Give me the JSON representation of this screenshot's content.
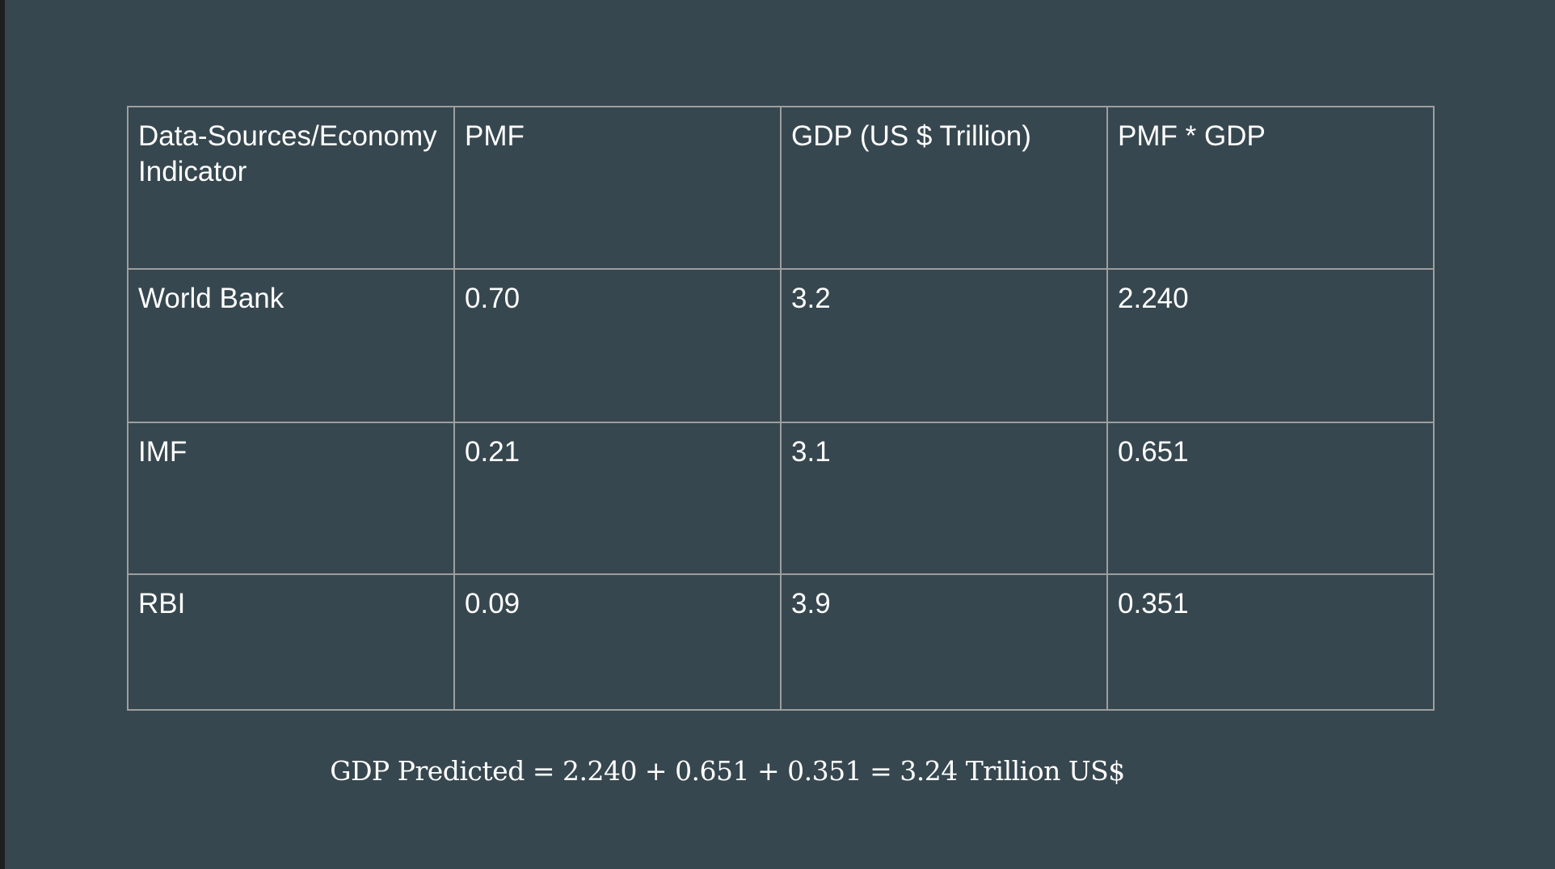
{
  "table": {
    "headers": [
      "Data-Sources/Economy Indicator",
      "PMF",
      "GDP (US $ Trillion)",
      "PMF * GDP"
    ],
    "rows": [
      [
        "World Bank",
        "0.70",
        "3.2",
        "2.240"
      ],
      [
        "IMF",
        "0.21",
        "3.1",
        "0.651"
      ],
      [
        "RBI",
        "0.09",
        "3.9",
        "0.351"
      ]
    ]
  },
  "formula": "GDP Predicted = 2.240 + 0.651 + 0.351 = 3.24 Trillion US$",
  "colors": {
    "background": "#37474f",
    "text": "#ffffff",
    "border": "#9e9e9e"
  }
}
